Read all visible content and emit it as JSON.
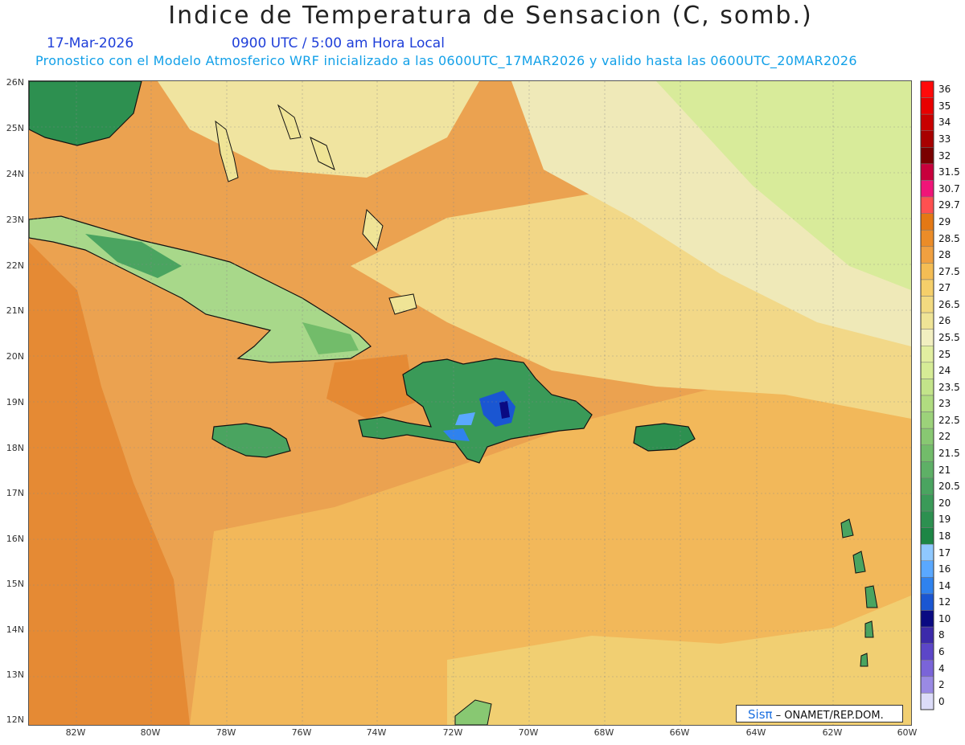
{
  "header": {
    "title": "Indice de Temperatura de Sensacion (C, somb.)",
    "date": "17-Mar-2026",
    "time": "0900 UTC / 5:00 am Hora Local",
    "model_line": "Pronostico con el Modelo Atmosferico WRF inicializado a las 0600UTC_17MAR2026 y valido hasta las  0600UTC_20MAR2026"
  },
  "map": {
    "lat_labels": [
      "26N",
      "25N",
      "24N",
      "23N",
      "22N",
      "21N",
      "20N",
      "19N",
      "18N",
      "17N",
      "16N",
      "15N",
      "14N",
      "13N",
      "12N"
    ],
    "lon_labels": [
      "82W",
      "80W",
      "78W",
      "76W",
      "74W",
      "72W",
      "70W",
      "68W",
      "66W",
      "64W",
      "62W",
      "60W"
    ]
  },
  "colorbar": {
    "labels": [
      "36",
      "35",
      "34",
      "33",
      "32",
      "31.5",
      "30.7",
      "29.7",
      "29",
      "28.5",
      "28",
      "27.5",
      "27",
      "26.5",
      "26",
      "25.5",
      "25",
      "24",
      "23.5",
      "23",
      "22.5",
      "22",
      "21.5",
      "21",
      "20.5",
      "20",
      "19",
      "18",
      "17",
      "16",
      "14",
      "12",
      "10",
      "8",
      "6",
      "4",
      "2",
      "0"
    ],
    "colors": [
      "#ff0a0a",
      "#e80000",
      "#c80000",
      "#a80000",
      "#7a0000",
      "#c8003c",
      "#f01478",
      "#ff5050",
      "#e47814",
      "#eb8c28",
      "#f0a040",
      "#f4bd54",
      "#f5cf6a",
      "#f2da80",
      "#efe496",
      "#f2efc0",
      "#e2efa0",
      "#d6ec96",
      "#c3e48a",
      "#b0dc80",
      "#9cd27a",
      "#88c872",
      "#72bc6a",
      "#5eb066",
      "#4aa460",
      "#3a9a58",
      "#2d9050",
      "#1d8645",
      "#8fc8ff",
      "#5aa8ff",
      "#2f82ee",
      "#1a56d2",
      "#0a0a82",
      "#3c2aaa",
      "#5c46c8",
      "#7a64d8",
      "#9a8ae4",
      "#dcdcf8"
    ]
  },
  "credit": {
    "sis": "Sisπ",
    "text": " – ONAMET/REP.DOM."
  }
}
